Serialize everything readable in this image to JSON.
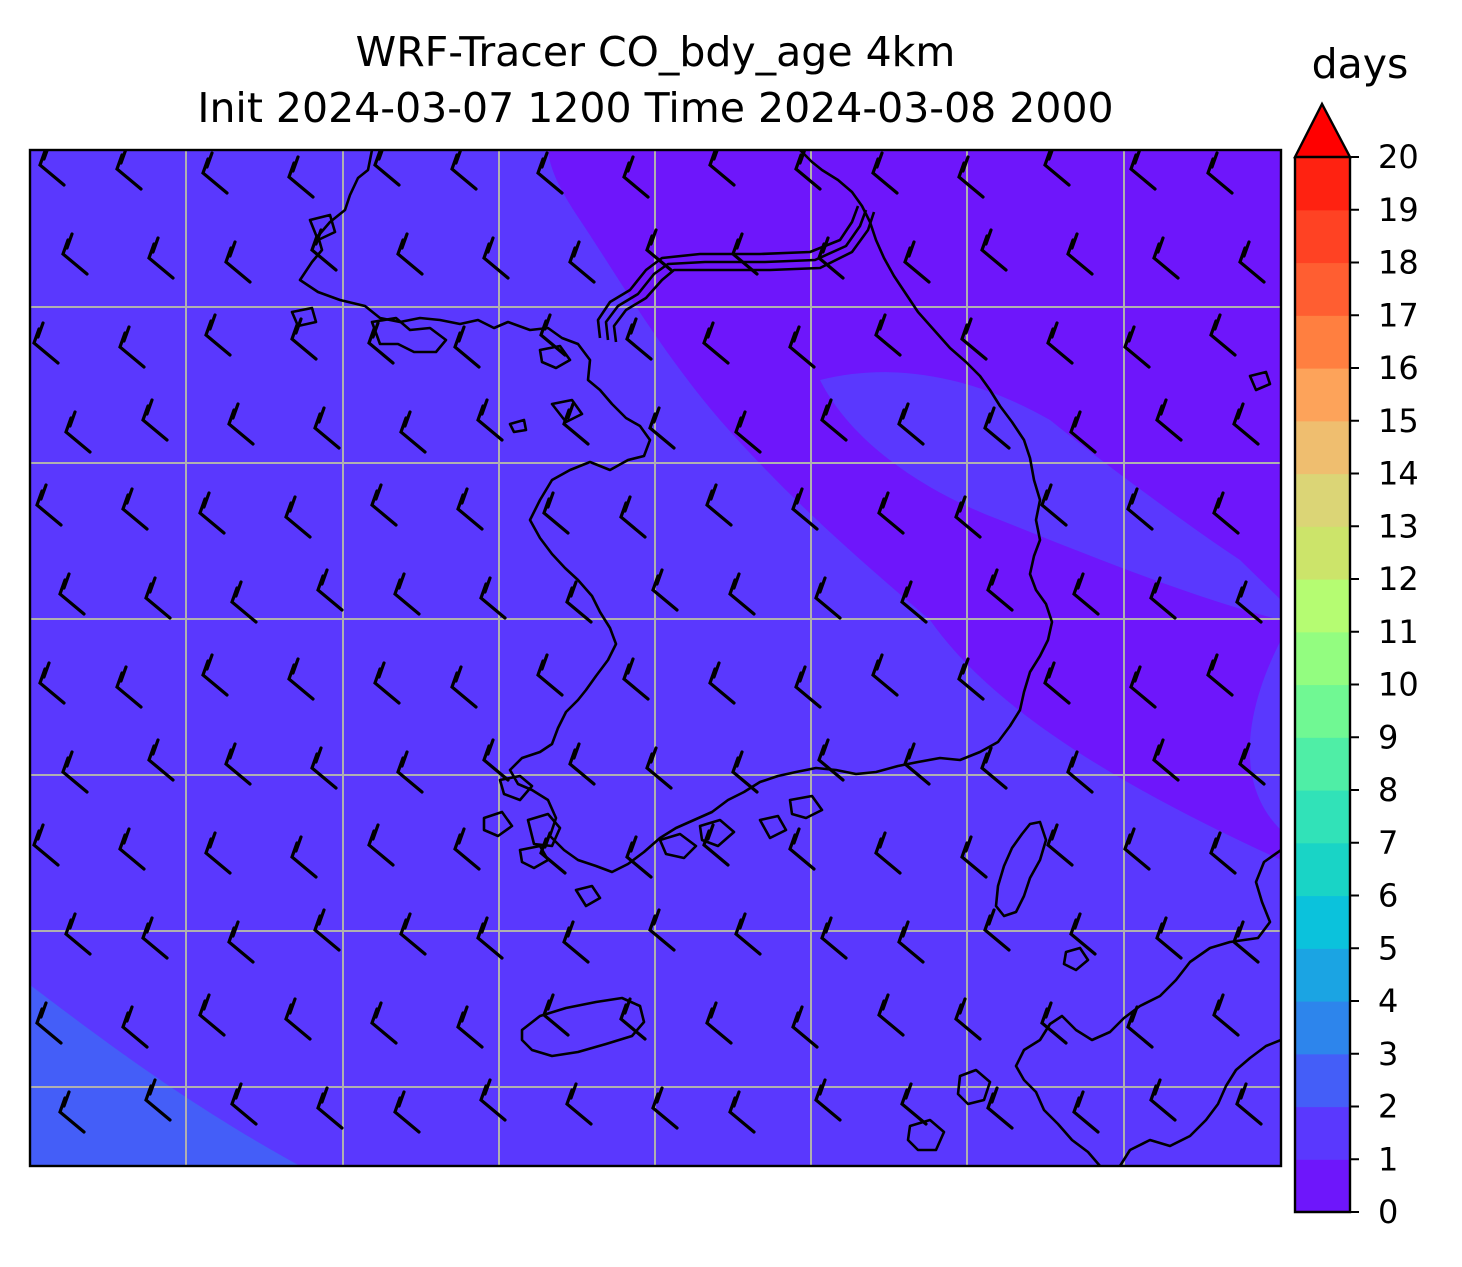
{
  "title": {
    "line1": "WRF-Tracer CO_bdy_age 4km",
    "line2": "Init 2024-03-07 1200 Time 2024-03-08 2000"
  },
  "colorbar": {
    "units": "days",
    "min": 0,
    "max": 20,
    "extend": "max",
    "tick_labels": [
      "0",
      "1",
      "2",
      "3",
      "4",
      "5",
      "6",
      "7",
      "8",
      "9",
      "10",
      "11",
      "12",
      "13",
      "14",
      "15",
      "16",
      "17",
      "18",
      "19",
      "20"
    ],
    "level_colors": [
      "#6e16fb",
      "#5a38fe",
      "#445ef8",
      "#2d85ec",
      "#1ba4e3",
      "#0bc2dc",
      "#19d4c6",
      "#31e2b8",
      "#4feea6",
      "#70f893",
      "#93fd80",
      "#b5fc72",
      "#cce46a",
      "#dbd576",
      "#efbe6f",
      "#fda35a",
      "#ff7f40",
      "#ff5e31",
      "#ff4223",
      "#ff2211"
    ],
    "over_color": "#ff0000"
  },
  "map": {
    "fill_value_days": 1.5,
    "background_band": {
      "range_days": [
        0,
        1
      ],
      "color": "#6e16fb"
    },
    "corner_band": {
      "range_days": [
        2,
        3
      ],
      "color": "#445ef8"
    },
    "gridlines": true,
    "gridline_color": "#b0b0b0",
    "wind_barbs": true,
    "coastlines": true
  }
}
